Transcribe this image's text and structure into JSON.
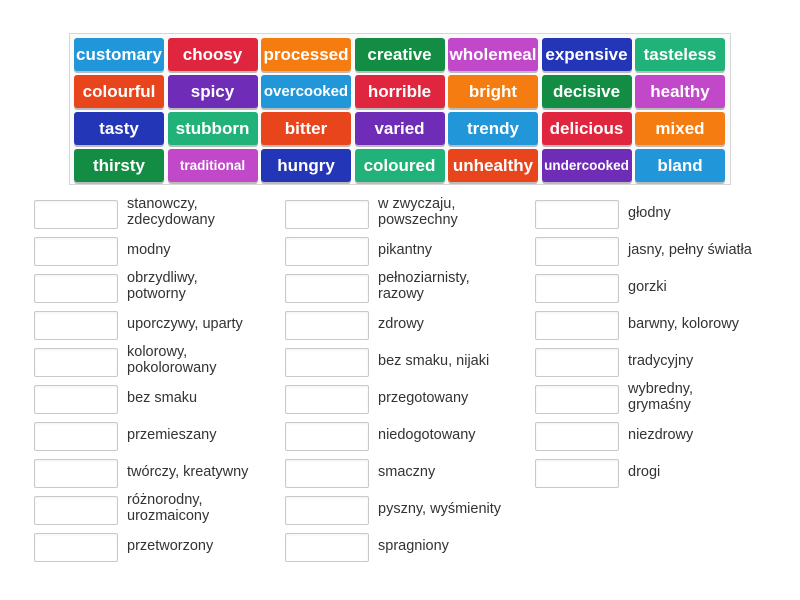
{
  "tiles": [
    {
      "text": "customary",
      "color": "#2196d9"
    },
    {
      "text": "choosy",
      "color": "#e0263f"
    },
    {
      "text": "processed",
      "color": "#f57c10"
    },
    {
      "text": "creative",
      "color": "#138d43"
    },
    {
      "text": "wholemeal",
      "color": "#c048c9"
    },
    {
      "text": "expensive",
      "color": "#2436b8"
    },
    {
      "text": "tasteless",
      "color": "#20b278"
    },
    {
      "text": "colourful",
      "color": "#e8451d"
    },
    {
      "text": "spicy",
      "color": "#6f2cb6"
    },
    {
      "text": "overcooked",
      "color": "#2196d9"
    },
    {
      "text": "horrible",
      "color": "#e0263f"
    },
    {
      "text": "bright",
      "color": "#f57c10"
    },
    {
      "text": "decisive",
      "color": "#138d43"
    },
    {
      "text": "healthy",
      "color": "#c048c9"
    },
    {
      "text": "tasty",
      "color": "#2436b8"
    },
    {
      "text": "stubborn",
      "color": "#20b278"
    },
    {
      "text": "bitter",
      "color": "#e8451d"
    },
    {
      "text": "varied",
      "color": "#6f2cb6"
    },
    {
      "text": "trendy",
      "color": "#2196d9"
    },
    {
      "text": "delicious",
      "color": "#e0263f"
    },
    {
      "text": "mixed",
      "color": "#f57c10"
    },
    {
      "text": "thirsty",
      "color": "#138d43"
    },
    {
      "text": "traditional",
      "color": "#c048c9"
    },
    {
      "text": "hungry",
      "color": "#2436b8"
    },
    {
      "text": "coloured",
      "color": "#20b278"
    },
    {
      "text": "unhealthy",
      "color": "#e8451d"
    },
    {
      "text": "undercooked",
      "color": "#6f2cb6"
    },
    {
      "text": "bland",
      "color": "#2196d9"
    }
  ],
  "columns": [
    [
      "stanowczy,\nzdecydowany",
      "modny",
      "obrzydliwy,\npotworny",
      "uporczywy, uparty",
      "kolorowy,\npokolorowany",
      "bez smaku",
      "przemieszany",
      "twórczy, kreatywny",
      "różnorodny,\nurozmaicony",
      "przetworzony"
    ],
    [
      "w zwyczaju,\npowszechny",
      "pikantny",
      "pełnoziarnisty,\nrazowy",
      "zdrowy",
      "bez smaku, nijaki",
      "przegotowany",
      "niedogotowany",
      "smaczny",
      "pyszny, wyśmienity",
      "spragniony"
    ],
    [
      "głodny",
      "jasny, pełny światła",
      "gorzki",
      "barwny, kolorowy",
      "tradycyjny",
      "wybredny,\ngrymaśny",
      "niezdrowy",
      "drogi"
    ]
  ]
}
